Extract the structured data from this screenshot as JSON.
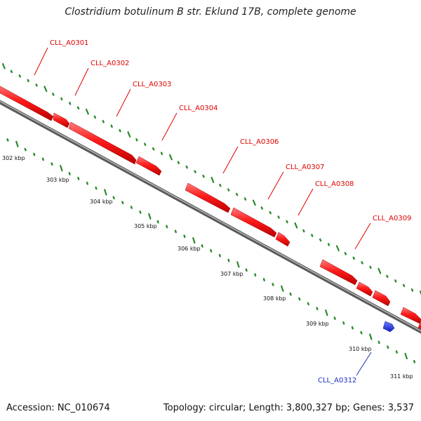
{
  "title": "Clostridium botulinum B str. Eklund 17B, complete genome",
  "footer": {
    "accession": "Accession: NC_010674",
    "stats": "Topology: circular; Length: 3,800,327 bp; Genes: 3,537"
  },
  "colors": {
    "forward_gene": "#ff1a1a",
    "reverse_gene": "#1a2fe0",
    "backbone": "#8a8a8a",
    "tick": "#2a8a2a",
    "forward_label": "#e00000",
    "reverse_label": "#1a2fbf"
  },
  "tick_labels": [
    "302 kbp",
    "303 kbp",
    "304 kbp",
    "305 kbp",
    "306 kbp",
    "307 kbp",
    "308 kbp",
    "309 kbp",
    "310 kbp",
    "311 kbp"
  ],
  "forward_gene_labels": [
    "CLL_A0301",
    "CLL_A0302",
    "CLL_A0303",
    "CLL_A0304",
    "CLL_A0306",
    "CLL_A0307",
    "CLL_A0308",
    "CLL_A0309"
  ],
  "reverse_gene_labels": [
    "CLL_A0312"
  ]
}
